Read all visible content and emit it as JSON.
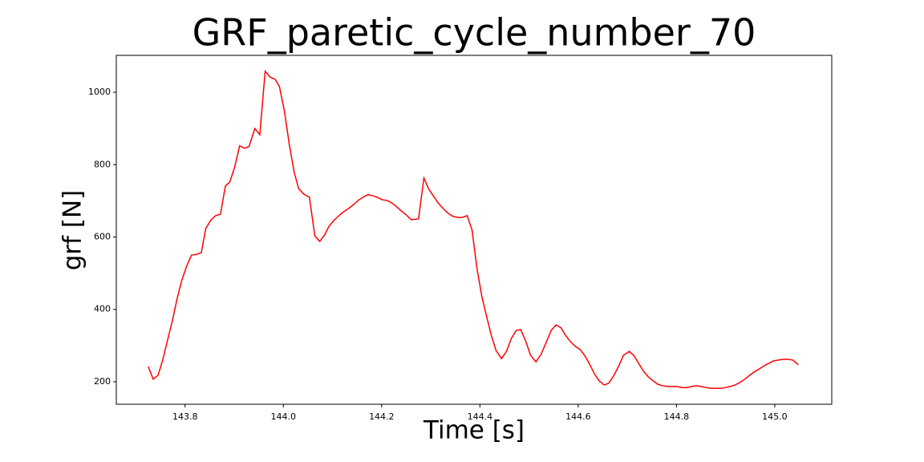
{
  "chart_data": {
    "type": "line",
    "title": "GRF_paretic_cycle_number_70",
    "x_label": "Time [s]",
    "y_label": "grf [N]",
    "x": [
      143.725,
      143.735,
      143.745,
      143.754,
      143.764,
      143.774,
      143.784,
      143.793,
      143.803,
      143.813,
      143.823,
      143.833,
      143.842,
      143.852,
      143.862,
      143.872,
      143.882,
      143.891,
      143.901,
      143.911,
      143.921,
      143.93,
      143.942,
      143.952,
      143.963,
      143.973,
      143.983,
      143.992,
      144.002,
      144.012,
      144.022,
      144.031,
      144.041,
      144.053,
      144.064,
      144.074,
      144.084,
      144.093,
      144.103,
      144.113,
      144.123,
      144.133,
      144.143,
      144.152,
      144.162,
      144.172,
      144.182,
      144.191,
      144.201,
      144.211,
      144.221,
      144.231,
      144.24,
      144.25,
      144.26,
      144.275,
      144.286,
      144.296,
      144.306,
      144.315,
      144.325,
      144.335,
      144.345,
      144.355,
      144.364,
      144.374,
      144.384,
      144.394,
      144.404,
      144.413,
      144.423,
      144.433,
      144.444,
      144.454,
      144.464,
      144.474,
      144.483,
      144.493,
      144.503,
      144.514,
      144.524,
      144.534,
      144.545,
      144.555,
      144.565,
      144.574,
      144.584,
      144.594,
      144.604,
      144.614,
      144.623,
      144.633,
      144.643,
      144.653,
      144.662,
      144.672,
      144.682,
      144.692,
      144.704,
      144.713,
      144.723,
      144.733,
      144.743,
      144.753,
      144.762,
      144.772,
      144.782,
      144.792,
      144.802,
      144.811,
      144.821,
      144.831,
      144.841,
      144.851,
      144.86,
      144.87,
      144.88,
      144.89,
      144.9,
      144.909,
      144.919,
      144.929,
      144.939,
      144.949,
      144.958,
      144.968,
      144.978,
      144.988,
      144.998,
      145.008,
      145.017,
      145.027,
      145.037,
      145.048
    ],
    "series": [
      {
        "name": "grf",
        "color": "#ff0000",
        "values": [
          242,
          207,
          218,
          258,
          313,
          368,
          431,
          479,
          519,
          550,
          552,
          557,
          623,
          646,
          659,
          663,
          741,
          752,
          794,
          852,
          845,
          850,
          900,
          883,
          1058,
          1042,
          1036,
          1016,
          949,
          856,
          779,
          734,
          719,
          710,
          603,
          588,
          606,
          630,
          646,
          659,
          670,
          679,
          690,
          701,
          710,
          717,
          714,
          710,
          703,
          701,
          694,
          683,
          672,
          661,
          648,
          650,
          763,
          732,
          712,
          694,
          679,
          666,
          657,
          654,
          654,
          659,
          619,
          513,
          435,
          384,
          329,
          286,
          264,
          284,
          320,
          342,
          344,
          313,
          273,
          255,
          275,
          306,
          342,
          357,
          349,
          329,
          311,
          298,
          289,
          271,
          249,
          222,
          202,
          191,
          196,
          216,
          242,
          273,
          284,
          273,
          251,
          229,
          213,
          202,
          193,
          189,
          187,
          187,
          187,
          184,
          184,
          187,
          189,
          187,
          184,
          182,
          182,
          182,
          184,
          187,
          191,
          198,
          207,
          218,
          227,
          235,
          244,
          251,
          258,
          260,
          262,
          262,
          260,
          247
        ]
      }
    ],
    "xlim": [
      143.66,
      145.116
    ],
    "ylim": [
      137.9,
      1102
    ],
    "xticks": [
      143.8,
      {
        "value": 144,
        "label": "144.0"
      },
      144.2,
      144.4,
      144.6,
      144.8,
      {
        "value": 145,
        "label": "145.0"
      }
    ],
    "yticks": [
      200,
      400,
      600,
      800,
      1000
    ]
  }
}
